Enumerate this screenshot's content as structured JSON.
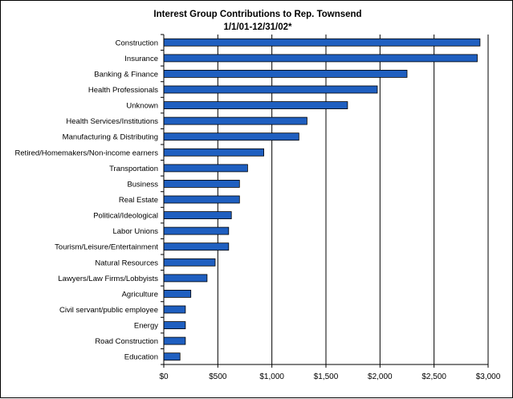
{
  "chart_data": {
    "type": "bar",
    "orientation": "horizontal",
    "title": "Interest Group Contributions to Rep. Townsend",
    "subtitle": "1/1/01-12/31/02*",
    "xlabel": "",
    "ylabel": "",
    "xlim": [
      0,
      3000
    ],
    "x_ticks": [
      0,
      500,
      1000,
      1500,
      2000,
      2500,
      3000
    ],
    "x_tick_labels": [
      "$0",
      "$500",
      "$1,000",
      "$1,500",
      "$2,000",
      "$2,500",
      "$3,000"
    ],
    "grid": "vertical major gridlines",
    "legend": "none",
    "bar_color": "#1F5FC0",
    "bar_edge_color": "#000000",
    "categories": [
      "Construction",
      "Insurance",
      "Banking & Finance",
      "Health Professionals",
      "Unknown",
      "Health Services/Institutions",
      "Manufacturing & Distributing",
      "Retired/Homemakers/Non-income earners",
      "Transportation",
      "Business",
      "Real Estate",
      "Political/Ideological",
      "Labor Unions",
      "Tourism/Leisure/Entertainment",
      "Natural Resources",
      "Lawyers/Law Firms/Lobbyists",
      "Agriculture",
      "Civil servant/public employee",
      "Energy",
      "Road Construction",
      "Education"
    ],
    "values": [
      2925,
      2900,
      2250,
      1975,
      1700,
      1325,
      1250,
      925,
      775,
      700,
      700,
      625,
      600,
      600,
      475,
      400,
      250,
      200,
      200,
      200,
      150
    ]
  }
}
